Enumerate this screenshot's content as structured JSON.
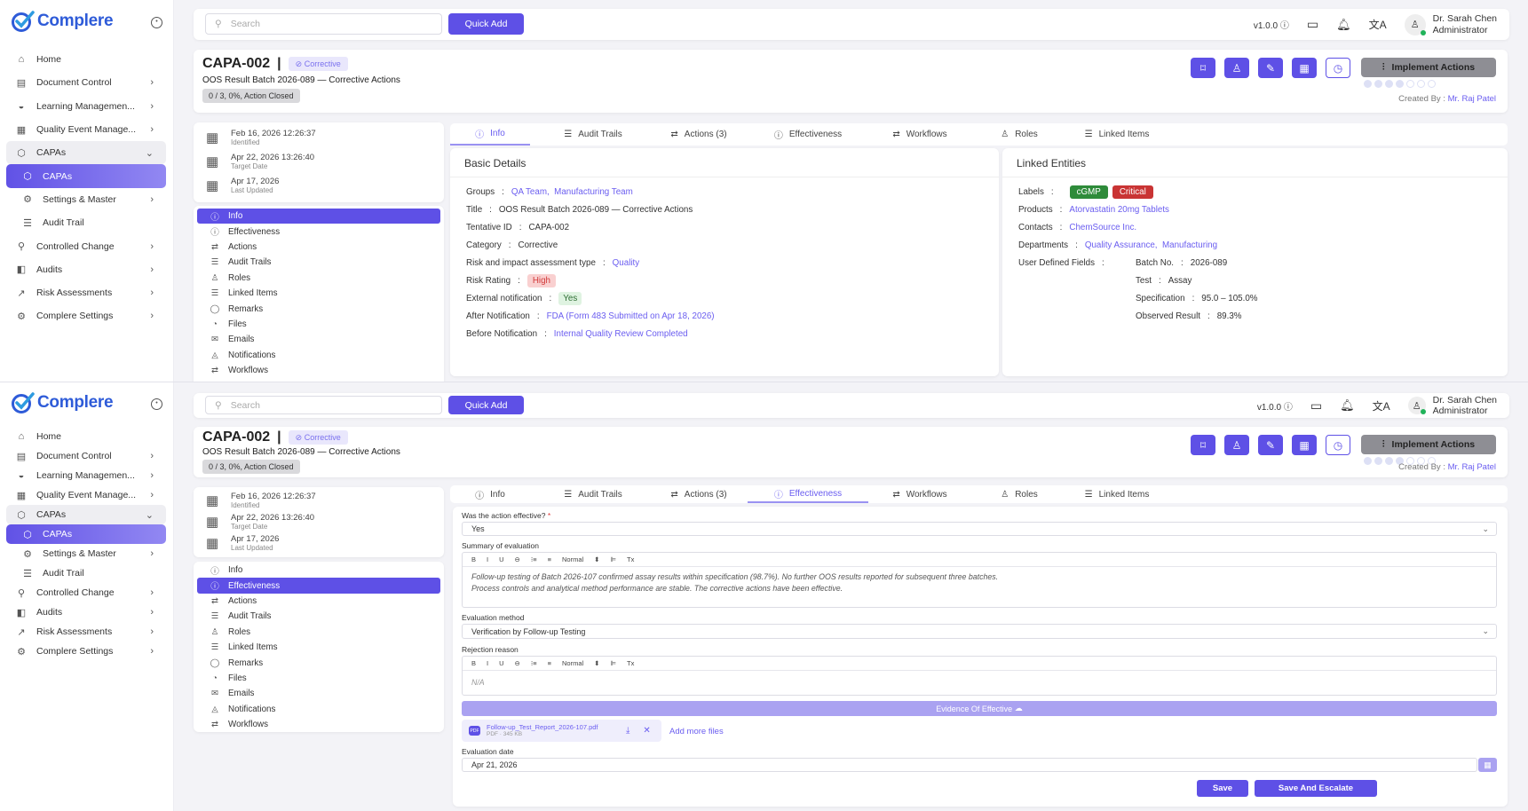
{
  "brand": {
    "name": "Complere",
    "primary": "#5e50e6",
    "link": "#6a5df0"
  },
  "sidebar": {
    "items": [
      {
        "label": "Home",
        "icon": "home-icon",
        "glyph": "⌂",
        "chev": false,
        "kind": ""
      },
      {
        "label": "Document Control",
        "icon": "document-icon",
        "glyph": "▤",
        "chev": true,
        "kind": ""
      },
      {
        "label": "Learning Managemen...",
        "icon": "graduation-cap-icon",
        "glyph": "◒",
        "chev": true,
        "kind": ""
      },
      {
        "label": "Quality Event Manage...",
        "icon": "calendar-icon",
        "glyph": "▦",
        "chev": true,
        "kind": ""
      },
      {
        "label": "CAPAs",
        "icon": "shield-icon",
        "glyph": "⬡",
        "chev": "down",
        "kind": "open"
      },
      {
        "label": "CAPAs",
        "icon": "shield-icon",
        "glyph": "⬡",
        "chev": false,
        "kind": "active sub"
      },
      {
        "label": "Settings & Master",
        "icon": "gear-icon",
        "glyph": "⚙",
        "chev": true,
        "kind": "sub"
      },
      {
        "label": "Audit Trail",
        "icon": "audit-trail-icon",
        "glyph": "☰",
        "chev": false,
        "kind": "sub"
      },
      {
        "label": "Controlled Change",
        "icon": "search-settings-icon",
        "glyph": "⚲",
        "chev": true,
        "kind": ""
      },
      {
        "label": "Audits",
        "icon": "audit-icon",
        "glyph": "◧",
        "chev": true,
        "kind": ""
      },
      {
        "label": "Risk Assessments",
        "icon": "chart-icon",
        "glyph": "↗",
        "chev": true,
        "kind": ""
      },
      {
        "label": "Complere Settings",
        "icon": "settings-icon",
        "glyph": "⚙",
        "chev": true,
        "kind": ""
      }
    ]
  },
  "topbar": {
    "search_placeholder": "Search",
    "quick_add": "Quick Add",
    "version": "v1.0.0",
    "user_name": "Dr. Sarah Chen",
    "user_role": "Administrator"
  },
  "header": {
    "id": "CAPA-002",
    "category": "Corrective",
    "subtitle": "OOS Result Batch 2026-089 — Corrective Actions",
    "progress": "0 / 3, 0%, Action Closed",
    "implement": "Implement Actions",
    "stage_progress": {
      "completed": 4,
      "total": 7
    },
    "created_by_label": "Created By :",
    "created_by": "Mr. Raj Patel"
  },
  "dates": [
    {
      "value": "Feb 16, 2026 12:26:37",
      "label": "Identified"
    },
    {
      "value": "Apr 22, 2026 13:26:40",
      "label": "Target Date"
    },
    {
      "value": "Apr 17, 2026",
      "label": "Last Updated"
    }
  ],
  "side_nav": [
    {
      "label": "Info",
      "icon": "info-icon",
      "glyph": "ⓘ"
    },
    {
      "label": "Effectiveness",
      "icon": "effectiveness-icon",
      "glyph": "ⓘ"
    },
    {
      "label": "Actions",
      "icon": "actions-icon",
      "glyph": "⇄"
    },
    {
      "label": "Audit Trails",
      "icon": "audit-trail-icon",
      "glyph": "☰"
    },
    {
      "label": "Roles",
      "icon": "user-icon",
      "glyph": "♙"
    },
    {
      "label": "Linked Items",
      "icon": "linked-items-icon",
      "glyph": "☰"
    },
    {
      "label": "Remarks",
      "icon": "comment-icon",
      "glyph": "◯"
    },
    {
      "label": "Files",
      "icon": "files-icon",
      "glyph": "◔"
    },
    {
      "label": "Emails",
      "icon": "email-icon",
      "glyph": "✉"
    },
    {
      "label": "Notifications",
      "icon": "bell-icon",
      "glyph": "◬"
    },
    {
      "label": "Workflows",
      "icon": "workflow-icon",
      "glyph": "⇄"
    }
  ],
  "tabs": [
    {
      "label": "Info",
      "icon": "info-icon",
      "glyph": "ⓘ"
    },
    {
      "label": "Audit Trails",
      "icon": "audit-trail-icon",
      "glyph": "☰"
    },
    {
      "label": "Actions (3)",
      "icon": "actions-icon",
      "glyph": "⇄"
    },
    {
      "label": "Effectiveness",
      "icon": "effectiveness-icon",
      "glyph": "ⓘ"
    },
    {
      "label": "Workflows",
      "icon": "workflow-icon",
      "glyph": "⇄"
    },
    {
      "label": "Roles",
      "icon": "user-icon",
      "glyph": "♙"
    },
    {
      "label": "Linked Items",
      "icon": "linked-items-icon",
      "glyph": "☰"
    }
  ],
  "basic_details": {
    "title": "Basic Details",
    "groups_label": "Groups",
    "groups": [
      "QA Team,",
      "Manufacturing Team"
    ],
    "title_label": "Title",
    "title_value": "OOS Result Batch 2026-089 — Corrective Actions",
    "tentative_label": "Tentative ID",
    "tentative_value": "CAPA-002",
    "category_label": "Category",
    "category_value": "Corrective",
    "risk_type_label": "Risk and impact assessment type",
    "risk_type_value": "Quality",
    "risk_rating_label": "Risk Rating",
    "risk_rating_value": "High",
    "ext_label": "External notification",
    "ext_value": "Yes",
    "after_label": "After Notification",
    "after_value": "FDA (Form 483 Submitted on Apr 18, 2026)",
    "before_label": "Before Notification",
    "before_value": "Internal Quality Review Completed"
  },
  "linked_entities": {
    "title": "Linked Entities",
    "labels_label": "Labels",
    "labels": [
      "cGMP",
      "Critical"
    ],
    "products_label": "Products",
    "products": "Atorvastatin 20mg Tablets",
    "contacts_label": "Contacts",
    "contacts": "ChemSource Inc.",
    "departments_label": "Departments",
    "departments": [
      "Quality Assurance,",
      "Manufacturing"
    ],
    "udf_label": "User Defined Fields",
    "udf": [
      {
        "label": "Batch No.",
        "value": "2026-089"
      },
      {
        "label": "Test",
        "value": "Assay"
      },
      {
        "label": "Specification",
        "value": "95.0 – 105.0%"
      },
      {
        "label": "Observed Result",
        "value": "89.3%"
      }
    ]
  },
  "effectiveness": {
    "effective_label": "Was the action effective?",
    "required": "*",
    "effective_value": "Yes",
    "summary_label": "Summary of evaluation",
    "toolbar": {
      "bold": "B",
      "italic": "I",
      "underline": "U",
      "strike": "⊖",
      "ol": "⁝≡",
      "ul": "≡",
      "heading": "Normal",
      "caret": "⬍",
      "align": "⊫",
      "clear": "Tx"
    },
    "summary_line1": "Follow-up testing of Batch 2026-107 confirmed assay results within specification (98.7%). No further OOS results reported for subsequent three batches.",
    "summary_line2": "Process controls and analytical method performance are stable. The corrective actions have been effective.",
    "method_label": "Evaluation method",
    "method_value": "Verification by Follow-up Testing",
    "rejection_label": "Rejection reason",
    "rejection_value": "N/A",
    "evidence_label": "Evidence Of Effective",
    "file_name": "Follow-up_Test_Report_2026-107.pdf",
    "file_type": "PDF",
    "file_size": "345 KB",
    "add_more": "Add more files",
    "date_label": "Evaluation date",
    "date_value": "Apr 21, 2026",
    "save": "Save",
    "save_escalate": "Save And Escalate"
  }
}
